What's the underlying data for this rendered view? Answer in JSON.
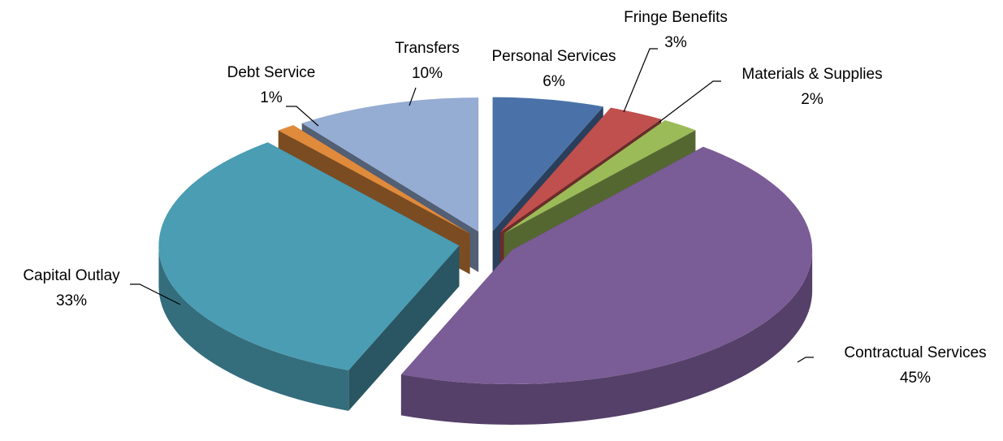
{
  "chart_data": {
    "type": "pie",
    "categories": [
      "Personal Services",
      "Fringe Benefits",
      "Materials & Supplies",
      "Contractual Services",
      "Capital Outlay",
      "Debt Service",
      "Transfers"
    ],
    "values": [
      6,
      3,
      2,
      45,
      33,
      1,
      10
    ],
    "value_labels": [
      "6%",
      "3%",
      "2%",
      "45%",
      "33%",
      "1%",
      "10%"
    ],
    "colors": [
      "#4a72a8",
      "#c0504d",
      "#9bbb59",
      "#7a5c96",
      "#4a9db3",
      "#e08a3c",
      "#95acd3"
    ]
  }
}
